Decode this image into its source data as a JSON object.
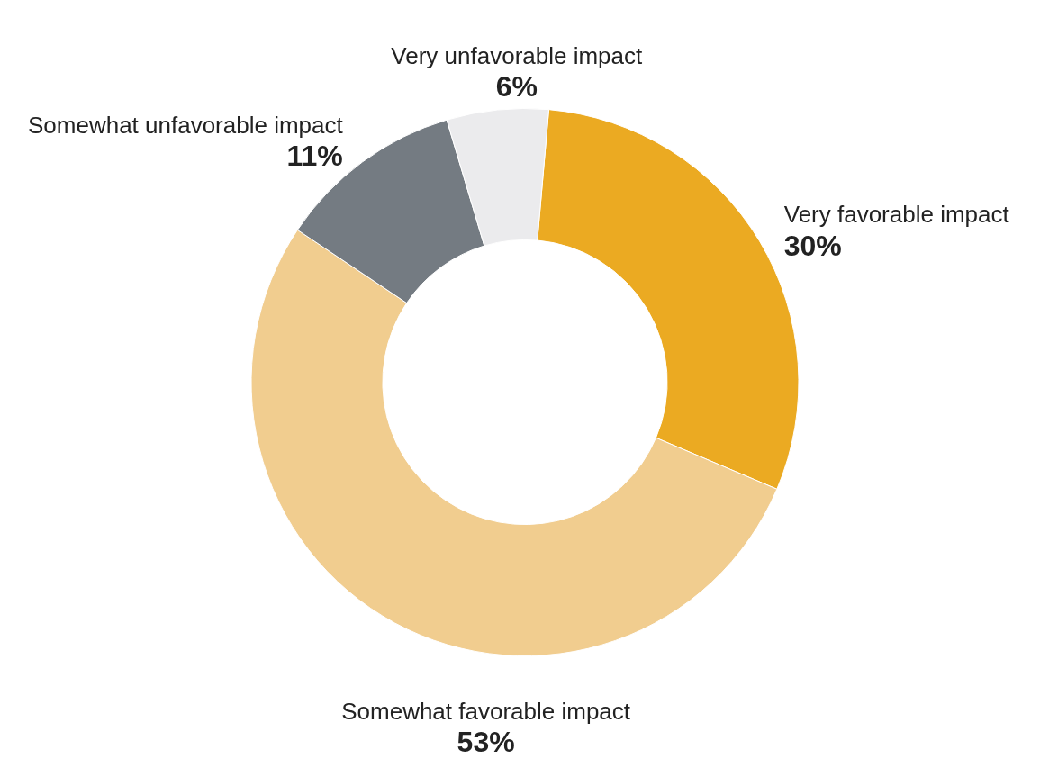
{
  "chart_data": {
    "type": "donut",
    "categories": [
      "Very favorable impact",
      "Somewhat favorable impact",
      "Somewhat unfavorable impact",
      "Very unfavorable impact"
    ],
    "values": [
      30,
      53,
      11,
      6
    ],
    "value_labels": [
      "30%",
      "53%",
      "11%",
      "6%"
    ],
    "colors": [
      "#ebaa22",
      "#f1cd8f",
      "#747b82",
      "#ebebed"
    ],
    "legend": false
  }
}
